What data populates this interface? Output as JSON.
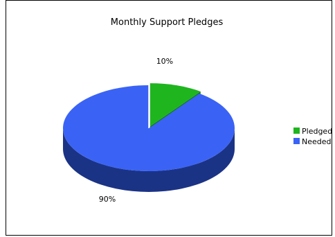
{
  "chart_data": {
    "type": "pie",
    "title": "Monthly Support Pledges",
    "three_d": true,
    "legend_position": "right",
    "slices": [
      {
        "name": "Pledged",
        "value": 10,
        "label": "10%",
        "color": "#1fb51f",
        "side_color": "#0e7a0e"
      },
      {
        "name": "Needed",
        "value": 90,
        "label": "90%",
        "color": "#3a63f5",
        "side_color": "#1b3385"
      }
    ]
  }
}
